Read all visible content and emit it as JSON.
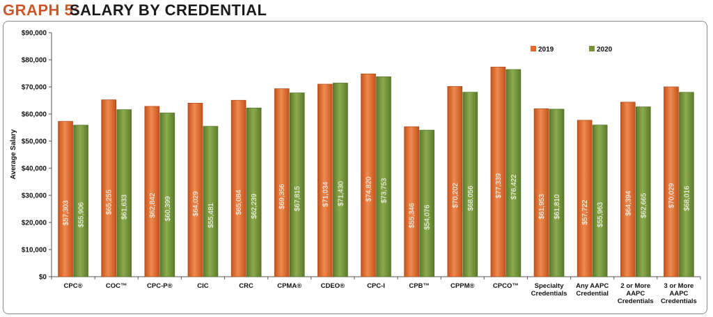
{
  "header": {
    "graph_label": "GRAPH 5:",
    "graph_title": "SALARY BY CREDENTIAL"
  },
  "colors": {
    "series_2019": "#e46a2c",
    "series_2020": "#77933c",
    "label_text": "#c9572a"
  },
  "chart_data": {
    "type": "bar",
    "title": "SALARY BY CREDENTIAL",
    "xlabel": "",
    "ylabel": "Average Salary",
    "ylim": [
      0,
      90000
    ],
    "yticks": [
      0,
      10000,
      20000,
      30000,
      40000,
      50000,
      60000,
      70000,
      80000,
      90000
    ],
    "ytick_labels": [
      "$0",
      "$10,000",
      "$20,000",
      "$30,000",
      "$40,000",
      "$50,000",
      "$60,000",
      "$70,000",
      "$80,000",
      "$90,000"
    ],
    "grid": false,
    "legend_position": "top-right",
    "categories": [
      "CPC®",
      "COC™",
      "CPC-P®",
      "CIC",
      "CRC",
      "CPMA®",
      "CDEO®",
      "CPC-I",
      "CPB™",
      "CPPM®",
      "CPCO™",
      "Specialty Credentials",
      "Any AAPC Credential",
      "2 or More AAPC Credentials",
      "3 or More AAPC Credentials"
    ],
    "category_lines": [
      [
        "CPC®"
      ],
      [
        "COC™"
      ],
      [
        "CPC-P®"
      ],
      [
        "CIC"
      ],
      [
        "CRC"
      ],
      [
        "CPMA®"
      ],
      [
        "CDEO®"
      ],
      [
        "CPC-I"
      ],
      [
        "CPB™"
      ],
      [
        "CPPM®"
      ],
      [
        "CPCO™"
      ],
      [
        "Specialty",
        "Credentials"
      ],
      [
        "Any AAPC",
        "Credential"
      ],
      [
        "2 or More",
        "AAPC",
        "Credentials"
      ],
      [
        "3 or More",
        "AAPC",
        "Credentials"
      ]
    ],
    "series": [
      {
        "name": "2019",
        "values": [
          57303,
          65255,
          62842,
          64029,
          65084,
          69356,
          71034,
          74820,
          55346,
          70202,
          77339,
          61953,
          57722,
          64394,
          70029
        ],
        "labels": [
          "$57,303",
          "$65,255",
          "$62,842",
          "$64,029",
          "$65,084",
          "$69,356",
          "$71,034",
          "$74,820",
          "$55,346",
          "$70,202",
          "$77,339",
          "$61,953",
          "$57,722",
          "$64,394",
          "$70,029"
        ]
      },
      {
        "name": "2020",
        "values": [
          55906,
          61633,
          60399,
          55481,
          62239,
          67815,
          71430,
          73753,
          54076,
          68056,
          76422,
          61810,
          55963,
          62665,
          68016
        ],
        "labels": [
          "$55,906",
          "$61,633",
          "$60,399",
          "$55,481",
          "$62,239",
          "$67,815",
          "$71,430",
          "$73,753",
          "$54,076",
          "$68,056",
          "$76,422",
          "$61,810",
          "$55,963",
          "$62,665",
          "$68,016"
        ]
      }
    ]
  }
}
